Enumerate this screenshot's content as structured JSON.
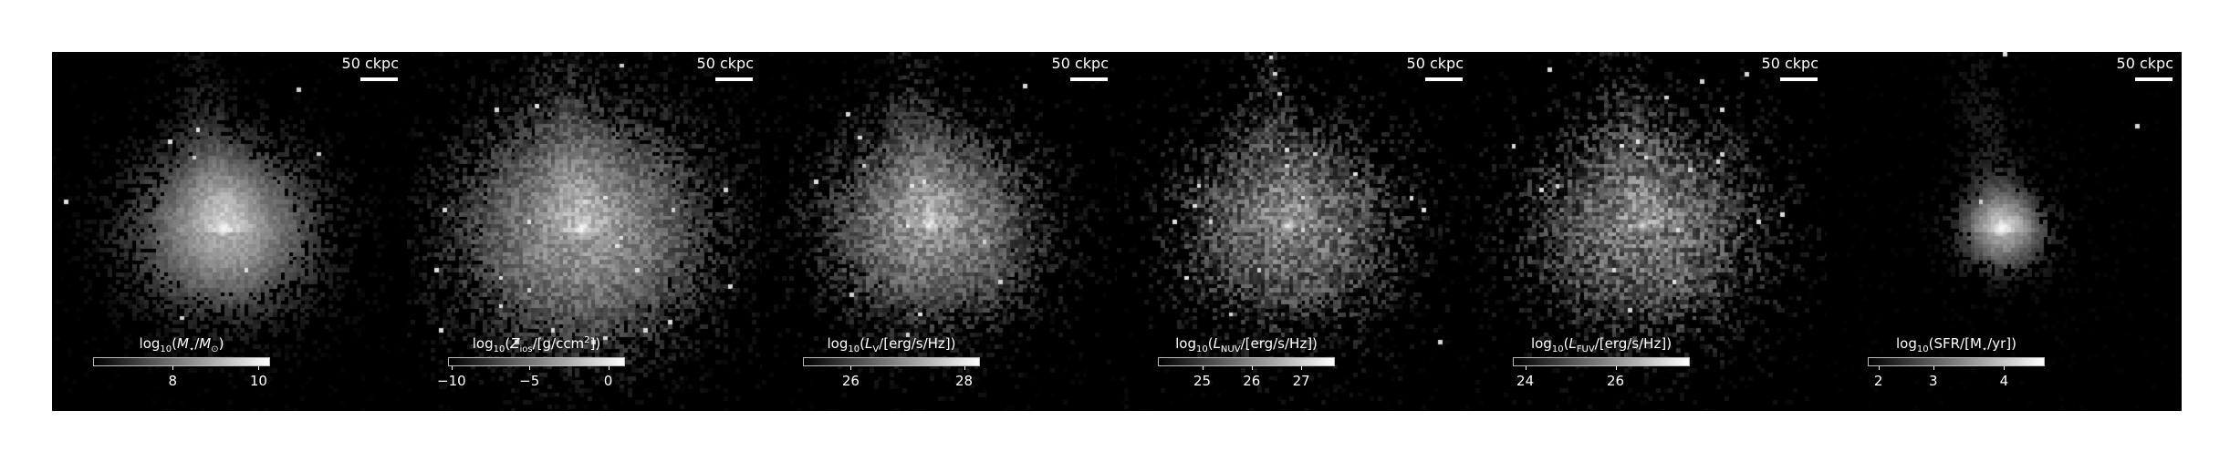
{
  "figure": {
    "panels": [
      {
        "id": "stellar-mass",
        "scale_bar": "50 ckpc",
        "colorbar": {
          "title_parts": {
            "pre": "log",
            "sub1": "10",
            "mid": "(",
            "ital": "M",
            "sub2": "⋆",
            "post": "/",
            "ital2": "M",
            "sub3": "⊙",
            "end": ")"
          },
          "ticks": [
            {
              "label": "8",
              "frac": 0.45
            },
            {
              "label": "10",
              "frac": 0.935
            }
          ]
        },
        "map": {
          "center": [
            0.48,
            0.49
          ],
          "core": 1.0,
          "sigma": 0.17,
          "fill": 0.55,
          "noise": 0.25,
          "seed": 11
        }
      },
      {
        "id": "metallicity",
        "scale_bar": "50 ckpc",
        "colorbar": {
          "title_parts": {
            "pre": "log",
            "sub1": "10",
            "mid": "(",
            "ital": "Z",
            "sub2": "ios",
            "post": "/[g/ccm",
            "sup": "2",
            "end": "])"
          },
          "ticks": [
            {
              "label": "−10",
              "frac": 0.02
            },
            {
              "label": "−5",
              "frac": 0.46
            },
            {
              "label": "0",
              "frac": 0.905
            }
          ]
        },
        "map": {
          "center": [
            0.49,
            0.49
          ],
          "core": 0.9,
          "sigma": 0.24,
          "fill": 0.85,
          "noise": 0.45,
          "seed": 23
        }
      },
      {
        "id": "v-band-luminosity",
        "scale_bar": "50 ckpc",
        "colorbar": {
          "title_parts": {
            "pre": "log",
            "sub1": "10",
            "mid": "(",
            "ital": "L",
            "sub2": "V",
            "post": "/[erg/s/Hz])",
            "end": ""
          },
          "ticks": [
            {
              "label": "26",
              "frac": 0.27
            },
            {
              "label": "28",
              "frac": 0.91
            }
          ]
        },
        "map": {
          "center": [
            0.47,
            0.48
          ],
          "core": 0.85,
          "sigma": 0.2,
          "fill": 0.8,
          "noise": 0.55,
          "seed": 37
        }
      },
      {
        "id": "nuv-luminosity",
        "scale_bar": "50 ckpc",
        "colorbar": {
          "title_parts": {
            "pre": "log",
            "sub1": "10",
            "mid": "(",
            "ital": "L",
            "sub2": "NUV",
            "post": "/[erg/s/Hz])",
            "end": ""
          },
          "ticks": [
            {
              "label": "25",
              "frac": 0.25
            },
            {
              "label": "26",
              "frac": 0.53
            },
            {
              "label": "27",
              "frac": 0.81
            }
          ]
        },
        "map": {
          "center": [
            0.48,
            0.48
          ],
          "core": 0.7,
          "sigma": 0.2,
          "fill": 0.8,
          "noise": 0.75,
          "seed": 53
        }
      },
      {
        "id": "fuv-luminosity",
        "scale_bar": "50 ckpc",
        "colorbar": {
          "title_parts": {
            "pre": "log",
            "sub1": "10",
            "mid": "(",
            "ital": "L",
            "sub2": "FUV",
            "post": "/[erg/s/Hz])",
            "end": ""
          },
          "ticks": [
            {
              "label": "24",
              "frac": 0.07
            },
            {
              "label": "26",
              "frac": 0.58
            }
          ]
        },
        "map": {
          "center": [
            0.48,
            0.48
          ],
          "core": 0.7,
          "sigma": 0.21,
          "fill": 0.85,
          "noise": 0.8,
          "seed": 71
        }
      },
      {
        "id": "star-formation-rate",
        "scale_bar": "50 ckpc",
        "colorbar": {
          "title_parts": {
            "pre": "log",
            "sub1": "10",
            "mid": "(SFR/[M",
            "ital": "",
            "sub2": "⋆",
            "post": "/yr])",
            "end": ""
          },
          "ticks": [
            {
              "label": "2",
              "frac": 0.06
            },
            {
              "label": "3",
              "frac": 0.37
            },
            {
              "label": "4",
              "frac": 0.77
            }
          ]
        },
        "map": {
          "center": [
            0.49,
            0.49
          ],
          "core": 1.0,
          "sigma": 0.08,
          "fill": 0.25,
          "noise": 0.2,
          "seed": 89
        }
      }
    ]
  }
}
